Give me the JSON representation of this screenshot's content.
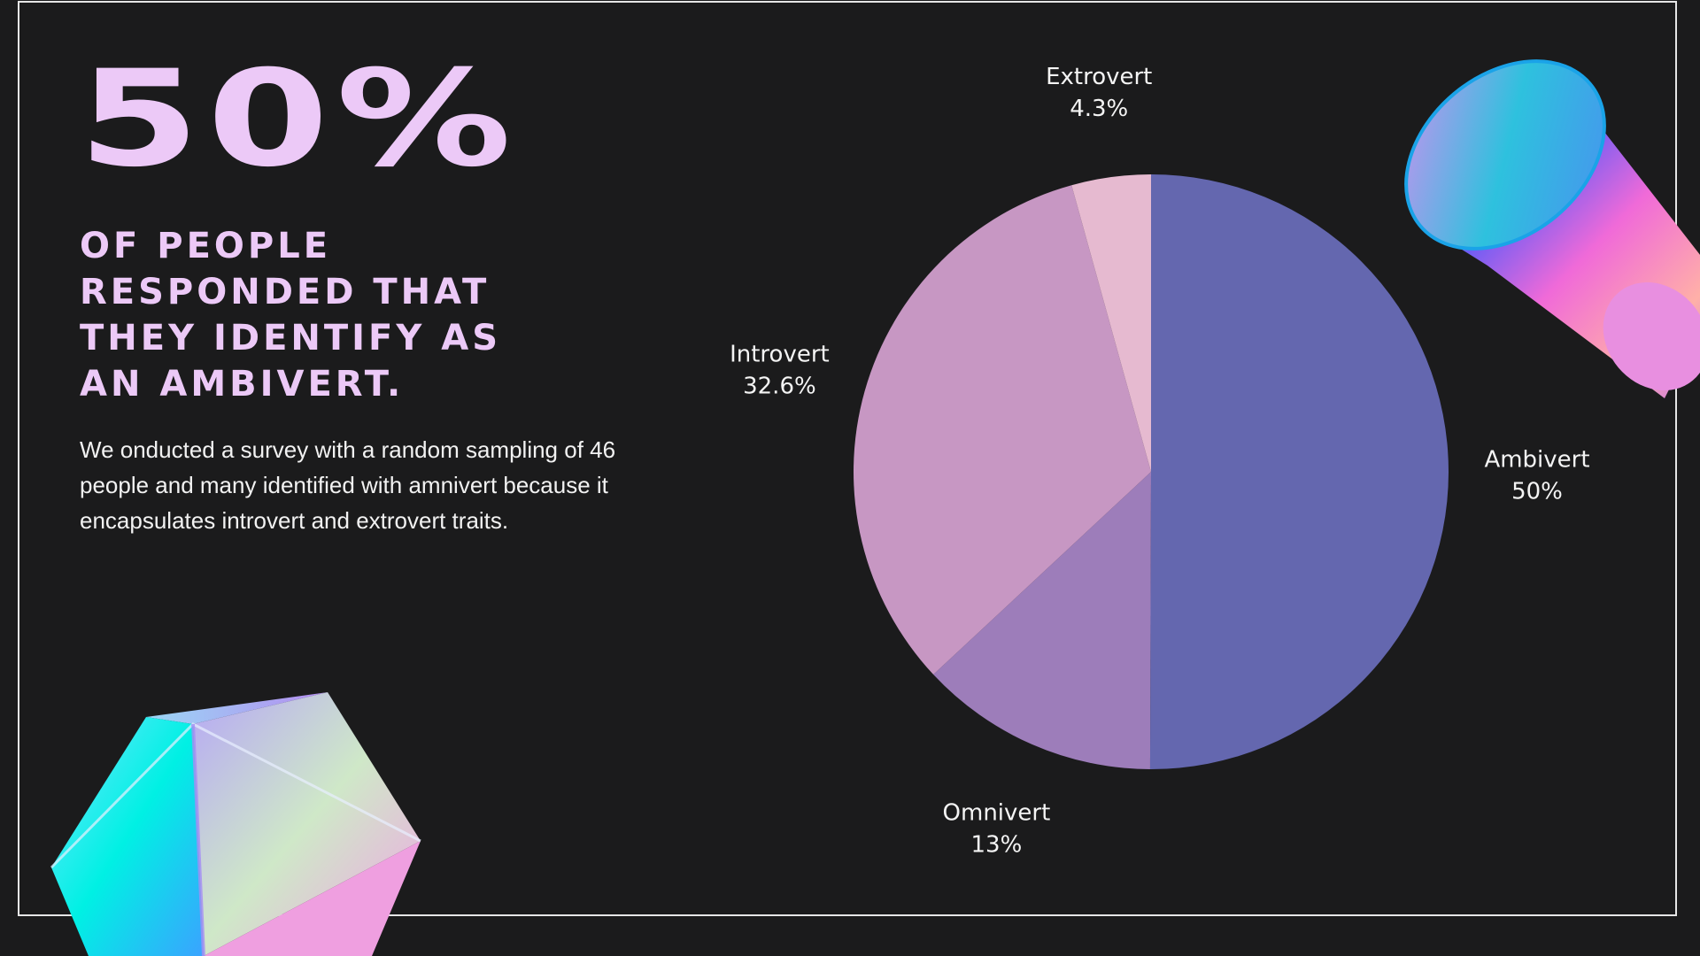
{
  "headline": {
    "stat": "50%",
    "lines": [
      "OF PEOPLE",
      "RESPONDED THAT",
      "THEY IDENTIFY AS",
      "AN AMBIVERT."
    ]
  },
  "body": {
    "text": "We onducted a survey with a random sampling of 46 people and  many identified with amnivert because it encapsulates introvert and extrovert traits."
  },
  "chart_data": {
    "type": "pie",
    "slices": [
      {
        "label": "Ambivert",
        "value": 50,
        "value_label": "50%",
        "color": "#6467af"
      },
      {
        "label": "Omnivert",
        "value": 13,
        "value_label": "13%",
        "color": "#9d7dba"
      },
      {
        "label": "Introvert",
        "value": 32.6,
        "value_label": "32.6%",
        "color": "#c797c3"
      },
      {
        "label": "Extrovert",
        "value": 4.3,
        "value_label": "4.3%",
        "color": "#e6bad0"
      }
    ]
  },
  "colors": {
    "background": "#1b1b1c",
    "accent": "#ecc9f7",
    "text": "#f2f2f2"
  }
}
